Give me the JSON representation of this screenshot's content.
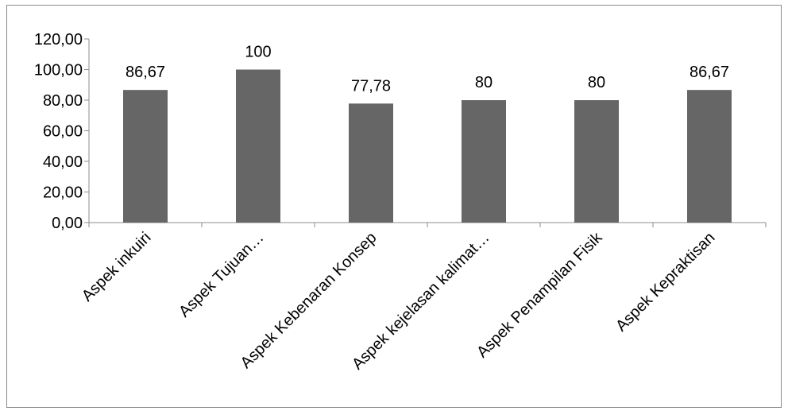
{
  "chart_data": {
    "type": "bar",
    "categories": [
      "Aspek inkuiri",
      "Aspek Tujuan…",
      "Aspek Kebenaran Konsep",
      "Aspek kejelasan kalimat…",
      "Aspek Penampilan Fisik",
      "Aspek Kepraktisan"
    ],
    "values": [
      86.67,
      100,
      77.78,
      80,
      80,
      86.67
    ],
    "data_labels": [
      "86,67",
      "100",
      "77,78",
      "80",
      "80",
      "86,67"
    ],
    "y_ticks": [
      0,
      20,
      40,
      60,
      80,
      100,
      120
    ],
    "y_tick_labels": [
      "0,00",
      "20,00",
      "40,00",
      "60,00",
      "80,00",
      "100,00",
      "120,00"
    ],
    "ylim": [
      0,
      120
    ],
    "grid": false,
    "legend": false,
    "bar_color": "#666666",
    "axis_color": "#8c8c8c"
  }
}
